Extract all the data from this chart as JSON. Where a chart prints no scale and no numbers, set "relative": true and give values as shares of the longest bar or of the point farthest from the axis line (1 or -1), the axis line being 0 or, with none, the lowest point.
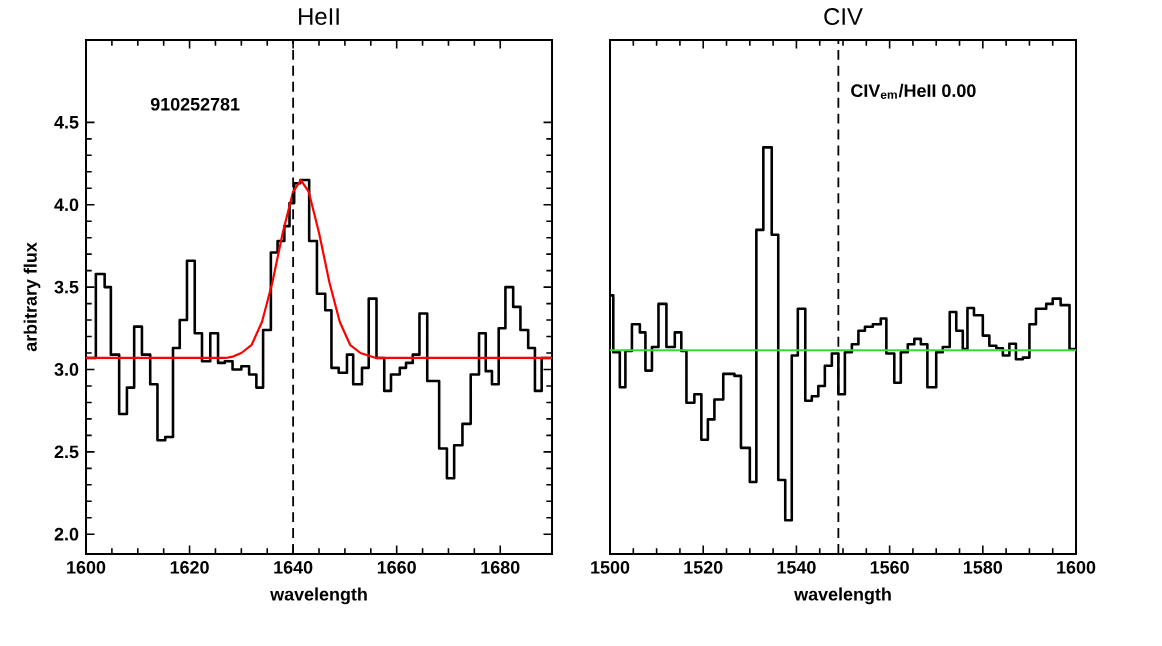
{
  "chart_data": [
    {
      "type": "step",
      "title": "HeII",
      "xlabel": "wavelength",
      "ylabel": "arbitrary flux",
      "xlim": [
        1600,
        1690
      ],
      "ylim": [
        1.88,
        5.0
      ],
      "xticks": [
        1600,
        1620,
        1640,
        1660,
        1680
      ],
      "yticks": [
        {
          "value": 2.0,
          "label": "2.0"
        },
        {
          "value": 2.5,
          "label": "2.5"
        },
        {
          "value": 3.0,
          "label": "3.0"
        },
        {
          "value": 3.5,
          "label": "3.5"
        },
        {
          "value": 4.0,
          "label": "4.0"
        },
        {
          "value": 4.5,
          "label": "4.5"
        }
      ],
      "series": [
        {
          "color": "#000000",
          "x": [
            1600,
            1601.9,
            1603.6,
            1604.8,
            1606.4,
            1607.9,
            1609.3,
            1610.8,
            1612.4,
            1613.8,
            1615.3,
            1616.8,
            1618.1,
            1619.5,
            1621.0,
            1622.4,
            1624.0,
            1625.5,
            1626.8,
            1628.3,
            1630.0,
            1631.5,
            1632.9,
            1634.2,
            1635.7,
            1637.0,
            1638.3,
            1639.3,
            1640.2,
            1641.4,
            1643.1,
            1644.6,
            1646.2,
            1647.4,
            1648.8,
            1650.4,
            1651.6,
            1653.3,
            1654.6,
            1656.1,
            1657.6,
            1658.9,
            1660.6,
            1661.8,
            1663.1,
            1664.4,
            1665.9,
            1668.2,
            1669.7,
            1671.1,
            1672.7,
            1674.3,
            1675.9,
            1677.2,
            1678.4,
            1679.7,
            1681.0,
            1682.5,
            1683.9,
            1685.4,
            1686.7,
            1688.0,
            1690
          ],
          "values": [
            3.07,
            3.58,
            3.5,
            3.09,
            2.73,
            2.89,
            3.26,
            3.09,
            2.91,
            2.57,
            2.59,
            3.13,
            3.3,
            3.66,
            3.22,
            3.05,
            3.22,
            3.04,
            3.05,
            3.0,
            3.02,
            2.97,
            2.89,
            3.24,
            3.71,
            3.78,
            3.87,
            4.01,
            4.13,
            4.15,
            3.78,
            3.46,
            3.36,
            3.01,
            2.98,
            3.09,
            2.91,
            3.01,
            3.43,
            3.07,
            2.87,
            2.97,
            3.01,
            3.04,
            3.09,
            3.34,
            2.93,
            2.52,
            2.34,
            2.54,
            2.67,
            2.97,
            3.22,
            2.99,
            2.91,
            3.25,
            3.5,
            3.38,
            3.24,
            3.13,
            2.87,
            3.07,
            3.07
          ]
        },
        {
          "type": "line",
          "color": "#ff0000",
          "x": [
            1600,
            1627,
            1628.5,
            1630,
            1632,
            1634,
            1636,
            1638,
            1640,
            1641.5,
            1643,
            1645,
            1647,
            1649,
            1651,
            1653,
            1656,
            1690
          ],
          "values": [
            3.07,
            3.07,
            3.08,
            3.1,
            3.15,
            3.29,
            3.53,
            3.83,
            4.08,
            4.15,
            4.08,
            3.83,
            3.53,
            3.29,
            3.15,
            3.1,
            3.07,
            3.07
          ]
        }
      ],
      "ref_lines": [
        {
          "axis": "x",
          "value": 1640,
          "line_style": "dashed"
        }
      ],
      "annotations": [
        "910252781"
      ],
      "grid": false,
      "marker": "none"
    },
    {
      "type": "step",
      "title": "CIV",
      "xlabel": "wavelength",
      "relative": true,
      "xlim": [
        1500,
        1600
      ],
      "xticks": [
        1500,
        1520,
        1540,
        1560,
        1580,
        1600
      ],
      "tick_labels": "x",
      "series": [
        {
          "color": "#000000",
          "x": [
            1500.0,
            1500.7,
            1502.1,
            1503.3,
            1504.7,
            1506.4,
            1507.6,
            1509.0,
            1510.4,
            1512.1,
            1513.9,
            1515.3,
            1516.4,
            1518.1,
            1519.6,
            1521.0,
            1522.4,
            1524.3,
            1526.7,
            1528.1,
            1530.0,
            1531.4,
            1532.9,
            1534.7,
            1536.1,
            1537.6,
            1539.0,
            1540.3,
            1541.9,
            1543.3,
            1544.7,
            1546.1,
            1547.6,
            1549.0,
            1550.4,
            1551.9,
            1553.3,
            1554.7,
            1556.4,
            1558.1,
            1559.3,
            1561.0,
            1562.4,
            1563.9,
            1565.3,
            1566.7,
            1568.1,
            1570.0,
            1571.4,
            1572.9,
            1574.3,
            1575.7,
            1576.7,
            1578.1,
            1580.0,
            1581.4,
            1582.9,
            1584.3,
            1585.7,
            1587.1,
            1588.6,
            1590.0,
            1591.4,
            1593.6,
            1595.0,
            1596.7,
            1598.6,
            1600
          ],
          "values": [
            0.636,
            0.496,
            0.41,
            0.499,
            0.565,
            0.545,
            0.451,
            0.509,
            0.615,
            0.509,
            0.545,
            0.499,
            0.372,
            0.393,
            0.281,
            0.331,
            0.38,
            0.443,
            0.438,
            0.261,
            0.177,
            0.797,
            1.0,
            0.785,
            0.182,
            0.083,
            0.488,
            0.603,
            0.377,
            0.388,
            0.413,
            0.463,
            0.493,
            0.393,
            0.496,
            0.516,
            0.549,
            0.559,
            0.565,
            0.579,
            0.493,
            0.421,
            0.496,
            0.516,
            0.529,
            0.516,
            0.41,
            0.496,
            0.509,
            0.595,
            0.549,
            0.504,
            0.605,
            0.587,
            0.537,
            0.512,
            0.506,
            0.488,
            0.517,
            0.479,
            0.483,
            0.565,
            0.603,
            0.615,
            0.628,
            0.612,
            0.504,
            0.504
          ]
        },
        {
          "type": "line",
          "color": "#33dd33",
          "x": [
            1500,
            1600
          ],
          "values": [
            0.501,
            0.501
          ]
        }
      ],
      "ref_lines": [
        {
          "axis": "x",
          "value": 1549,
          "line_style": "dashed"
        }
      ],
      "annotations": [
        "CIV$_{em}$/HeII 0.00"
      ],
      "grid": false,
      "marker": "none"
    }
  ]
}
